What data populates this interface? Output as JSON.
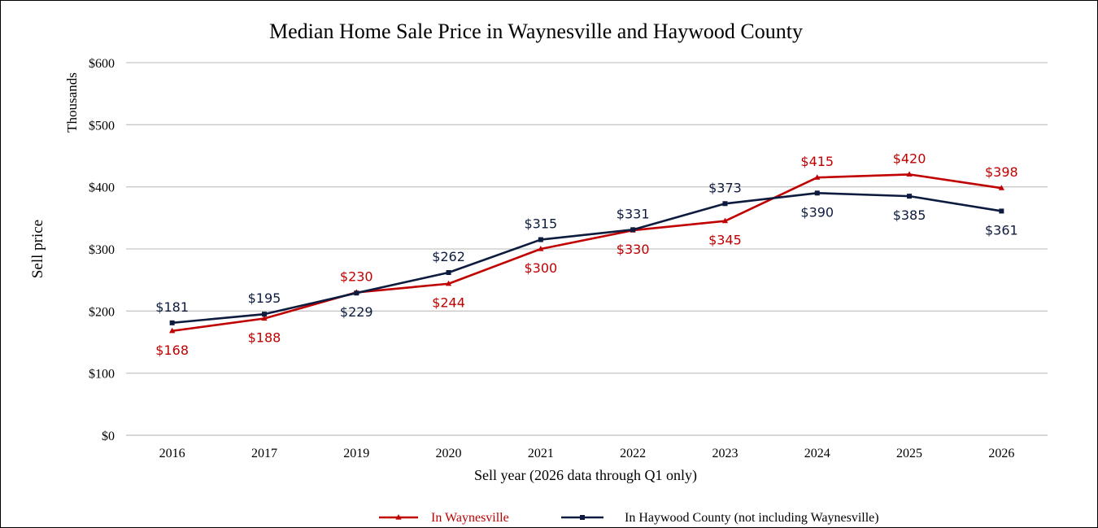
{
  "chart_data": {
    "type": "line",
    "title": "Median Home Sale Price in Waynesville and Haywood County",
    "xlabel": "Sell year (2026 data through Q1 only)",
    "ylabel": "Sell price",
    "yunit_label": "Thousands",
    "categories": [
      "2016",
      "2017",
      "2019",
      "2020",
      "2021",
      "2022",
      "2023",
      "2024",
      "2025",
      "2026"
    ],
    "y_ticks": [
      "$0",
      "$100",
      "$200",
      "$300",
      "$400",
      "$500",
      "$600"
    ],
    "ylim": [
      0,
      600
    ],
    "grid": true,
    "legend_position": "bottom",
    "series": [
      {
        "name": "In Waynesville",
        "color": "#c00000",
        "marker": "triangle",
        "values": [
          168,
          188,
          230,
          244,
          300,
          330,
          345,
          415,
          420,
          398
        ],
        "labels": [
          "$168",
          "$188",
          "$230",
          "$244",
          "$300",
          "$330",
          "$345",
          "$415",
          "$420",
          "$398"
        ],
        "label_positions": [
          "below",
          "below",
          "above",
          "below",
          "below",
          "below",
          "below",
          "above",
          "above",
          "above"
        ]
      },
      {
        "name": "In Haywood County (not including Waynesville)",
        "color": "#0d1b3e",
        "marker": "square",
        "values": [
          181,
          195,
          229,
          262,
          315,
          331,
          373,
          390,
          385,
          361
        ],
        "labels": [
          "$181",
          "$195",
          "$229",
          "$262",
          "$315",
          "$331",
          "$373",
          "$390",
          "$385",
          "$361"
        ],
        "label_positions": [
          "above",
          "above",
          "below",
          "above",
          "above",
          "above",
          "above",
          "below",
          "below",
          "below"
        ]
      }
    ]
  }
}
